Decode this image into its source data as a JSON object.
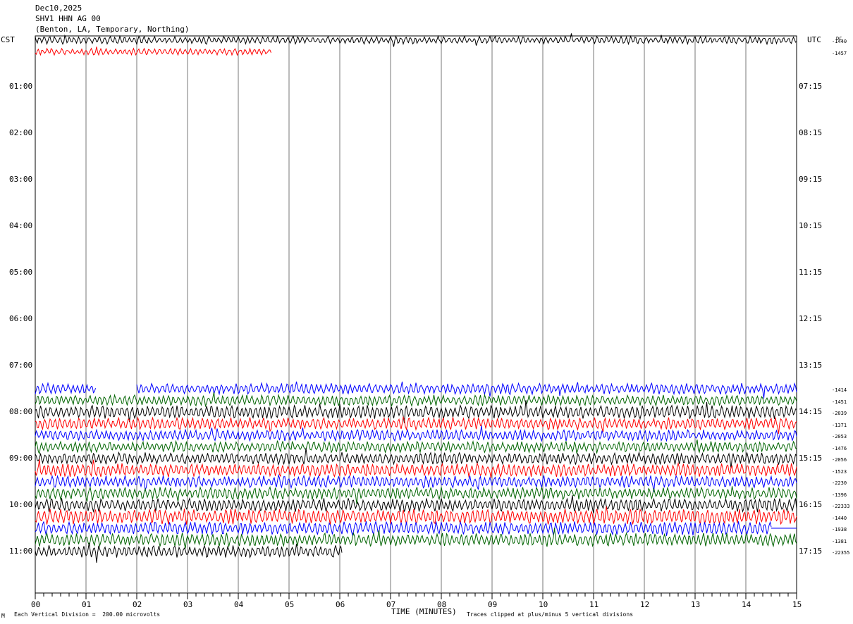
{
  "header": {
    "date": "Dec10,2025",
    "station": "SHV1 HHN AG 00",
    "location": "(Benton, LA, Temporary, Northing)"
  },
  "left_tz": "CST",
  "right_tz": "UTC",
  "dc_header": "DC",
  "footer": {
    "scale": "Each Vertical Division =  200.00 microvolts",
    "clip": "Traces clipped at plus/minus 5 vertical divisions",
    "corner_mark": "M"
  },
  "chart_data": {
    "type": "line",
    "title": "SHV1 HHN AG 00",
    "xlabel": "TIME (MINUTES)",
    "ylabel": "",
    "xlim": [
      0,
      15
    ],
    "x_ticks": [
      "00",
      "01",
      "02",
      "03",
      "04",
      "05",
      "06",
      "07",
      "08",
      "09",
      "10",
      "11",
      "12",
      "13",
      "14",
      "15"
    ],
    "left_hour_labels": [
      "01:00",
      "02:00",
      "03:00",
      "04:00",
      "05:00",
      "06:00",
      "07:00",
      "08:00",
      "09:00",
      "10:00",
      "11:00"
    ],
    "right_hour_labels": [
      "07:15",
      "08:15",
      "09:15",
      "10:15",
      "11:15",
      "12:15",
      "13:15",
      "14:15",
      "15:15",
      "16:15",
      "17:15"
    ],
    "grid": true,
    "colors": {
      "black": "#000000",
      "red": "#ff0000",
      "blue": "#0000ff",
      "green": "#006400"
    },
    "traces": [
      {
        "row": 0,
        "color": "black",
        "start_min": 0,
        "end_min": 15,
        "dc": "-1440",
        "amplitude": 0.35
      },
      {
        "row": 1,
        "color": "red",
        "start_min": 0,
        "end_min": 4.65,
        "dc": "-1457",
        "amplitude": 0.3
      },
      {
        "row": 30,
        "color": "blue",
        "start_min": 0,
        "end_min": 15,
        "dc": "-1414",
        "amplitude": 0.5,
        "gap": [
          1.2,
          2.0
        ]
      },
      {
        "row": 31,
        "color": "green",
        "start_min": 0,
        "end_min": 15,
        "dc": "-1451",
        "amplitude": 0.5
      },
      {
        "row": 32,
        "color": "black",
        "start_min": 0,
        "end_min": 15,
        "dc": "-2039",
        "amplitude": 0.6
      },
      {
        "row": 33,
        "color": "red",
        "start_min": 0,
        "end_min": 15,
        "dc": "-1371",
        "amplitude": 0.55
      },
      {
        "row": 34,
        "color": "blue",
        "start_min": 0,
        "end_min": 15,
        "dc": "-2053",
        "amplitude": 0.5
      },
      {
        "row": 35,
        "color": "green",
        "start_min": 0,
        "end_min": 15,
        "dc": "-1476",
        "amplitude": 0.5
      },
      {
        "row": 36,
        "color": "black",
        "start_min": 0,
        "end_min": 15,
        "dc": "-2056",
        "amplitude": 0.55
      },
      {
        "row": 37,
        "color": "red",
        "start_min": 0,
        "end_min": 15,
        "dc": "-1523",
        "amplitude": 0.6
      },
      {
        "row": 38,
        "color": "blue",
        "start_min": 0,
        "end_min": 15,
        "dc": "-2230",
        "amplitude": 0.55
      },
      {
        "row": 39,
        "color": "green",
        "start_min": 0,
        "end_min": 15,
        "dc": "-1396",
        "amplitude": 0.55
      },
      {
        "row": 40,
        "color": "black",
        "start_min": 0,
        "end_min": 15,
        "dc": "-22333",
        "amplitude": 0.6
      },
      {
        "row": 41,
        "color": "red",
        "start_min": 0,
        "end_min": 15,
        "dc": "-1440",
        "amplitude": 0.7
      },
      {
        "row": 42,
        "color": "blue",
        "start_min": 0,
        "end_min": 14.5,
        "dc": "-1938",
        "amplitude": 0.6
      },
      {
        "row": 43,
        "color": "green",
        "start_min": 0,
        "end_min": 15,
        "dc": "-1381",
        "amplitude": 0.6
      },
      {
        "row": 44,
        "color": "black",
        "start_min": 0,
        "end_min": 6.05,
        "dc": "-22355",
        "amplitude": 0.55
      }
    ]
  }
}
